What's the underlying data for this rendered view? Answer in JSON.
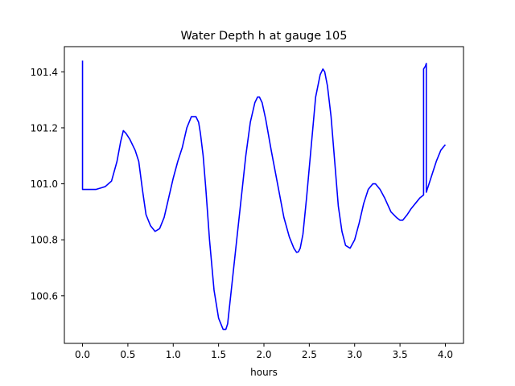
{
  "chart_data": {
    "type": "line",
    "title": "Water Depth h at gauge 105",
    "xlabel": "hours",
    "ylabel": "",
    "xlim": [
      -0.2,
      4.2
    ],
    "ylim": [
      100.43,
      101.49
    ],
    "xticks": [
      0.0,
      0.5,
      1.0,
      1.5,
      2.0,
      2.5,
      3.0,
      3.5,
      4.0
    ],
    "xtick_labels": [
      "0.0",
      "0.5",
      "1.0",
      "1.5",
      "2.0",
      "2.5",
      "3.0",
      "3.5",
      "4.0"
    ],
    "yticks": [
      100.6,
      100.8,
      101.0,
      101.2,
      101.4
    ],
    "ytick_labels": [
      "100.6",
      "100.8",
      "101.0",
      "101.2",
      "101.4"
    ],
    "grid": false,
    "legend": "none",
    "series": [
      {
        "color": "#0000ff",
        "x": [
          0.0,
          0.0,
          0.15,
          0.25,
          0.32,
          0.38,
          0.42,
          0.45,
          0.48,
          0.52,
          0.58,
          0.62,
          0.66,
          0.7,
          0.75,
          0.8,
          0.85,
          0.9,
          0.95,
          1.0,
          1.05,
          1.1,
          1.15,
          1.2,
          1.25,
          1.28,
          1.3,
          1.33,
          1.36,
          1.4,
          1.45,
          1.5,
          1.55,
          1.58,
          1.6,
          1.62,
          1.65,
          1.7,
          1.75,
          1.8,
          1.85,
          1.9,
          1.93,
          1.95,
          1.98,
          2.02,
          2.08,
          2.15,
          2.22,
          2.28,
          2.33,
          2.36,
          2.38,
          2.4,
          2.43,
          2.47,
          2.52,
          2.57,
          2.62,
          2.65,
          2.67,
          2.7,
          2.74,
          2.78,
          2.82,
          2.86,
          2.9,
          2.95,
          3.0,
          3.05,
          3.1,
          3.15,
          3.2,
          3.23,
          3.28,
          3.33,
          3.4,
          3.46,
          3.5,
          3.53,
          3.58,
          3.62,
          3.67,
          3.72,
          3.76,
          3.76,
          3.78,
          3.79,
          3.79,
          3.8,
          3.82,
          3.86,
          3.9,
          3.95,
          4.0
        ],
        "y": [
          101.44,
          100.98,
          100.98,
          100.99,
          101.01,
          101.08,
          101.15,
          101.19,
          101.18,
          101.16,
          101.12,
          101.08,
          100.98,
          100.89,
          100.85,
          100.83,
          100.84,
          100.88,
          100.95,
          101.02,
          101.08,
          101.13,
          101.2,
          101.24,
          101.24,
          101.22,
          101.18,
          101.1,
          100.98,
          100.8,
          100.62,
          100.52,
          100.48,
          100.48,
          100.5,
          100.56,
          100.65,
          100.8,
          100.95,
          101.1,
          101.22,
          101.29,
          101.31,
          101.31,
          101.29,
          101.23,
          101.12,
          101.0,
          100.88,
          100.81,
          100.77,
          100.755,
          100.757,
          100.77,
          100.82,
          100.95,
          101.13,
          101.31,
          101.39,
          101.41,
          101.4,
          101.35,
          101.24,
          101.08,
          100.92,
          100.83,
          100.78,
          100.77,
          100.8,
          100.86,
          100.93,
          100.98,
          101.0,
          101.0,
          100.98,
          100.95,
          100.9,
          100.88,
          100.87,
          100.87,
          100.89,
          100.91,
          100.93,
          100.95,
          100.96,
          101.41,
          101.42,
          101.43,
          100.97,
          100.98,
          101.0,
          101.04,
          101.08,
          101.12,
          101.14
        ]
      }
    ]
  }
}
